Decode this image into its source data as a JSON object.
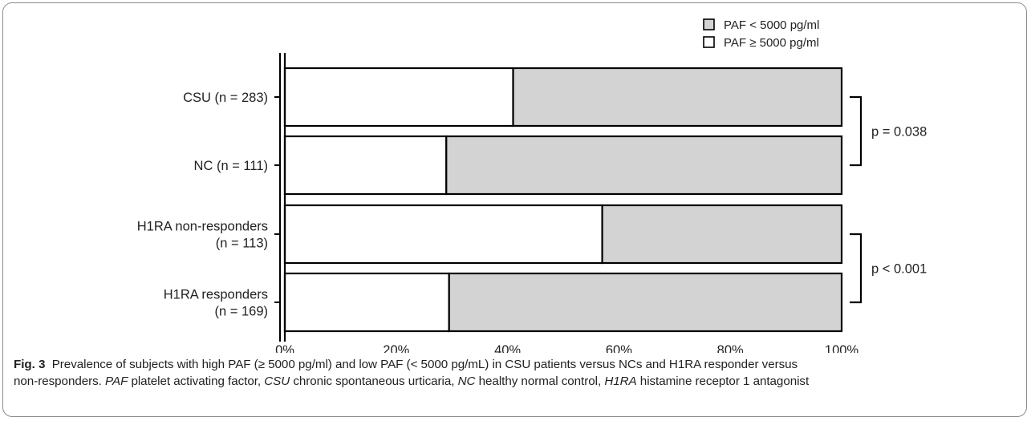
{
  "chart_data": {
    "type": "bar",
    "stacked": true,
    "orientation": "horizontal",
    "percent": true,
    "categories": [
      [
        "CSU (n = 283)"
      ],
      [
        "NC (n = 111)"
      ],
      [
        "H1RA non-responders",
        "(n = 113)"
      ],
      [
        "H1RA responders",
        "(n = 169)"
      ]
    ],
    "series": [
      {
        "name": "PAF ≥ 5000 pg/ml",
        "values": [
          41,
          29,
          57,
          29.5
        ],
        "color": "#ffffff"
      },
      {
        "name": "PAF < 5000 pg/ml",
        "values": [
          59,
          71,
          43,
          70.5
        ],
        "color": "#d3d3d3"
      }
    ],
    "legend_order": [
      "PAF < 5000 pg/ml",
      "PAF ≥ 5000 pg/ml"
    ],
    "legend_position": "top-right",
    "xlim": [
      0,
      100
    ],
    "xticks": [
      "0%",
      "20%",
      "40%",
      "60%",
      "80%",
      "100%"
    ],
    "annotations": [
      {
        "label": "p = 0.038",
        "rows": [
          0,
          1
        ]
      },
      {
        "label": "p < 0.001",
        "rows": [
          2,
          3
        ]
      }
    ],
    "grid": false
  },
  "caption": {
    "fig_label": "Fig. 3",
    "line1": "Prevalence of subjects with high PAF (≥ 5000 pg/ml) and low PAF (< 5000 pg/mL) in CSU patients versus NCs and H1RA responder versus",
    "line2_segments": [
      {
        "text": "non-responders. ",
        "italic": false
      },
      {
        "text": "PAF",
        "italic": true
      },
      {
        "text": " platelet activating factor, ",
        "italic": false
      },
      {
        "text": "CSU",
        "italic": true
      },
      {
        "text": " chronic spontaneous urticaria, ",
        "italic": false
      },
      {
        "text": "NC",
        "italic": true
      },
      {
        "text": " healthy normal control, ",
        "italic": false
      },
      {
        "text": "H1RA",
        "italic": true
      },
      {
        "text": " histamine receptor 1 antagonist",
        "italic": false
      }
    ]
  }
}
